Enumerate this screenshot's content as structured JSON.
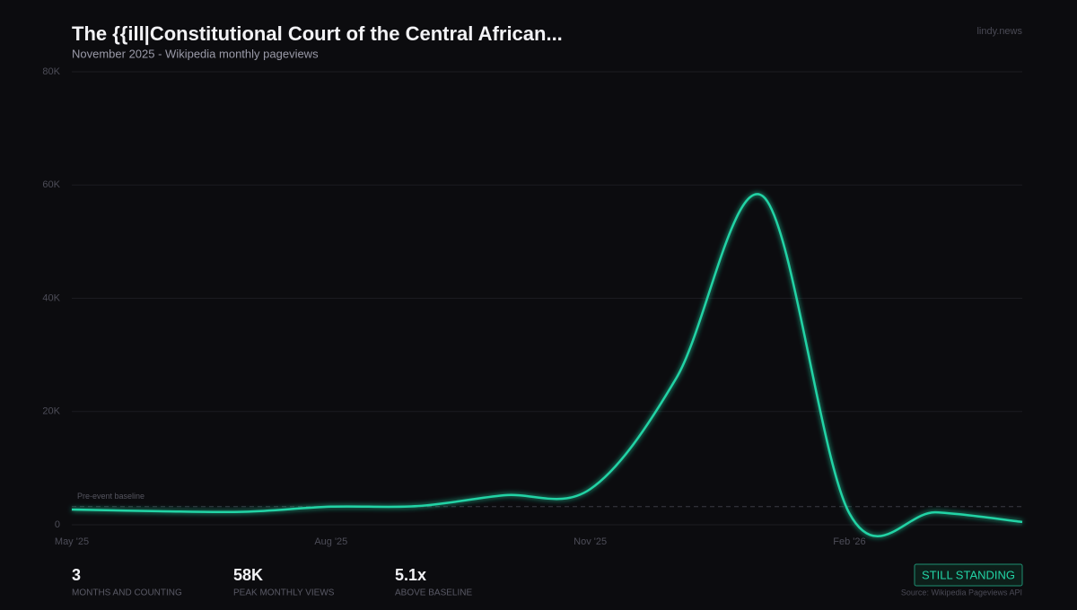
{
  "brand": "lindy.news",
  "chart_data": {
    "type": "line",
    "title": "The {{ill|Constitutional Court of the Central African...",
    "subtitle": "November 2025  -  Wikipedia monthly pageviews",
    "categories": [
      "May '25",
      null,
      null,
      "Aug '25",
      null,
      null,
      "Nov '25",
      null,
      null,
      "Feb '26",
      null,
      null
    ],
    "series": [
      {
        "name": "Pageviews",
        "color": "#22d3a5",
        "values": [
          2700,
          2400,
          2300,
          3200,
          3300,
          5200,
          6300,
          26000,
          58000,
          2000,
          2200,
          500
        ]
      }
    ],
    "ylim": [
      0,
      80000
    ],
    "yticks": [
      0,
      {
        "value": 20000,
        "label": "20K"
      },
      {
        "value": 40000,
        "label": "40K"
      },
      {
        "value": 60000,
        "label": "60K"
      },
      {
        "value": 80000,
        "label": "80K"
      }
    ],
    "grid": true,
    "baseline": {
      "value": 3200,
      "label": "Pre-event baseline"
    }
  },
  "stats": [
    {
      "value": "3",
      "label": "MONTHS AND COUNTING"
    },
    {
      "value": "58K",
      "label": "PEAK MONTHLY VIEWS"
    },
    {
      "value": "5.1x",
      "label": "ABOVE BASELINE"
    }
  ],
  "badge": "STILL STANDING",
  "source": "Source: Wikipedia Pageviews API"
}
